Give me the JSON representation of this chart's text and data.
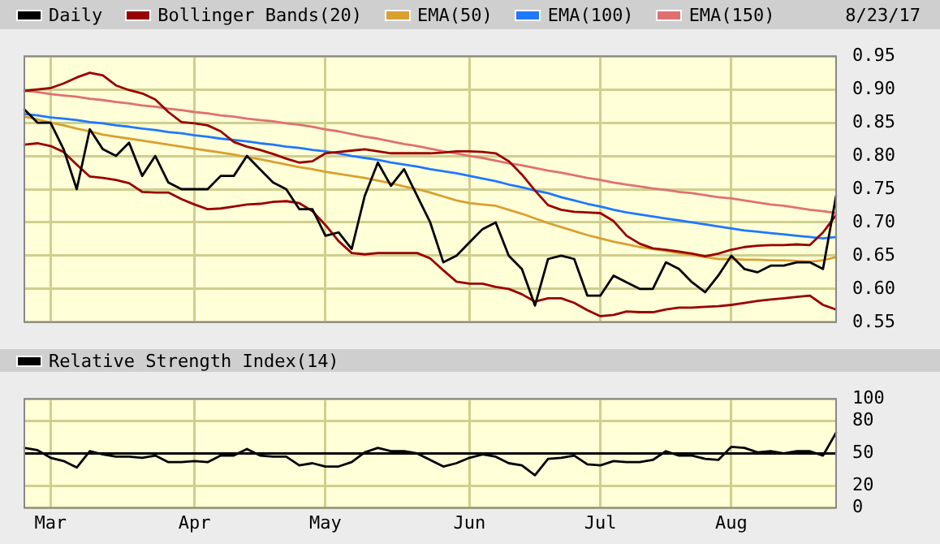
{
  "chart_data": [
    {
      "type": "line",
      "categories": [
        null,
        null,
        null,
        null,
        null,
        null,
        null,
        null,
        null,
        null,
        null,
        null,
        null,
        null,
        null,
        null,
        null,
        null,
        null,
        null,
        null,
        null,
        null,
        null,
        null,
        null,
        null,
        null,
        null,
        null,
        null,
        null,
        null,
        null,
        null,
        null,
        null,
        null,
        null,
        null,
        null,
        null,
        null,
        null,
        null,
        null,
        null,
        null,
        null,
        null,
        null,
        null,
        null,
        null,
        null,
        null,
        null,
        null,
        null,
        null,
        null,
        null,
        null
      ],
      "series": [
        {
          "name": "Daily",
          "color": "#000000",
          "values": [
            0.87,
            0.85,
            0.85,
            0.81,
            0.75,
            0.84,
            0.81,
            0.8,
            0.82,
            0.77,
            0.8,
            0.76,
            0.75,
            0.75,
            0.75,
            0.77,
            0.77,
            0.8,
            0.78,
            0.76,
            0.75,
            0.72,
            0.72,
            0.68,
            0.685,
            0.66,
            0.74,
            0.79,
            0.755,
            0.78,
            0.74,
            0.7,
            0.64,
            0.65,
            0.67,
            0.69,
            0.7,
            0.65,
            0.63,
            0.575,
            0.645,
            0.65,
            0.645,
            0.59,
            0.59,
            0.62,
            0.61,
            0.6,
            0.6,
            0.64,
            0.63,
            0.61,
            0.595,
            0.62,
            0.65,
            0.63,
            0.625,
            0.635,
            0.635,
            0.64,
            0.64,
            0.63,
            0.74
          ]
        },
        {
          "name": "Bollinger Bands(20)",
          "color": "#990000",
          "values": [
            0.898,
            0.9,
            0.902,
            0.909,
            0.918,
            0.925,
            0.921,
            0.906,
            0.899,
            0.894,
            0.885,
            0.866,
            0.851,
            0.849,
            0.846,
            0.837,
            0.821,
            0.814,
            0.809,
            0.803,
            0.796,
            0.79,
            0.792,
            0.804,
            0.806,
            0.808,
            0.81,
            0.807,
            0.804,
            0.804,
            0.804,
            0.804,
            0.805,
            0.807,
            0.807,
            0.806,
            0.804,
            0.792,
            0.772,
            0.748,
            0.726,
            0.719,
            0.716,
            0.715,
            0.714,
            0.702,
            0.68,
            0.668,
            0.661,
            0.659,
            0.656,
            0.653,
            0.649,
            0.653,
            0.659,
            0.663,
            0.665,
            0.666,
            0.666,
            0.667,
            0.666,
            0.685,
            0.711
          ]
        },
        {
          "color": "#990000",
          "values": [
            0.817,
            0.819,
            0.815,
            0.806,
            0.787,
            0.769,
            0.767,
            0.764,
            0.759,
            0.746,
            0.745,
            0.745,
            0.735,
            0.727,
            0.72,
            0.721,
            0.724,
            0.727,
            0.728,
            0.731,
            0.732,
            0.729,
            0.717,
            0.696,
            0.672,
            0.654,
            0.652,
            0.654,
            0.654,
            0.654,
            0.654,
            0.646,
            0.628,
            0.611,
            0.608,
            0.608,
            0.603,
            0.6,
            0.592,
            0.581,
            0.586,
            0.586,
            0.579,
            0.568,
            0.559,
            0.561,
            0.566,
            0.565,
            0.565,
            0.569,
            0.572,
            0.572,
            0.573,
            0.574,
            0.576,
            0.579,
            0.582,
            0.584,
            0.586,
            0.588,
            0.59,
            0.576,
            0.569
          ]
        },
        {
          "name": "EMA(50)",
          "color": "#d9a030",
          "values": [
            0.859,
            0.855,
            0.85,
            0.846,
            0.841,
            0.837,
            0.832,
            0.829,
            0.826,
            0.823,
            0.82,
            0.817,
            0.814,
            0.811,
            0.808,
            0.805,
            0.802,
            0.798,
            0.795,
            0.791,
            0.787,
            0.783,
            0.78,
            0.776,
            0.773,
            0.77,
            0.767,
            0.763,
            0.759,
            0.754,
            0.75,
            0.745,
            0.739,
            0.733,
            0.729,
            0.727,
            0.725,
            0.719,
            0.713,
            0.706,
            0.699,
            0.693,
            0.687,
            0.681,
            0.676,
            0.671,
            0.667,
            0.663,
            0.66,
            0.657,
            0.654,
            0.651,
            0.648,
            0.645,
            0.645,
            0.644,
            0.644,
            0.643,
            0.643,
            0.642,
            0.641,
            0.643,
            0.648
          ]
        },
        {
          "name": "EMA(100)",
          "color": "#1f78ff",
          "values": [
            0.863,
            0.861,
            0.858,
            0.856,
            0.854,
            0.851,
            0.849,
            0.846,
            0.844,
            0.841,
            0.839,
            0.836,
            0.834,
            0.831,
            0.829,
            0.826,
            0.824,
            0.822,
            0.819,
            0.817,
            0.814,
            0.812,
            0.809,
            0.807,
            0.804,
            0.8,
            0.797,
            0.794,
            0.79,
            0.787,
            0.784,
            0.78,
            0.777,
            0.774,
            0.77,
            0.766,
            0.762,
            0.757,
            0.753,
            0.748,
            0.744,
            0.738,
            0.733,
            0.728,
            0.724,
            0.719,
            0.715,
            0.712,
            0.709,
            0.706,
            0.703,
            0.7,
            0.697,
            0.694,
            0.691,
            0.688,
            0.686,
            0.684,
            0.682,
            0.68,
            0.678,
            0.676,
            0.678
          ]
        },
        {
          "name": "EMA(150)",
          "color": "#e07070",
          "values": [
            0.898,
            0.896,
            0.893,
            0.891,
            0.889,
            0.886,
            0.884,
            0.881,
            0.879,
            0.876,
            0.874,
            0.871,
            0.869,
            0.866,
            0.864,
            0.861,
            0.859,
            0.856,
            0.854,
            0.852,
            0.849,
            0.847,
            0.844,
            0.84,
            0.837,
            0.833,
            0.829,
            0.826,
            0.822,
            0.818,
            0.815,
            0.811,
            0.807,
            0.804,
            0.8,
            0.797,
            0.793,
            0.789,
            0.786,
            0.782,
            0.778,
            0.775,
            0.771,
            0.767,
            0.764,
            0.76,
            0.757,
            0.754,
            0.751,
            0.749,
            0.746,
            0.744,
            0.741,
            0.738,
            0.736,
            0.733,
            0.73,
            0.727,
            0.725,
            0.722,
            0.719,
            0.717,
            0.714
          ]
        }
      ],
      "ylim": [
        0.55,
        0.95
      ],
      "yticks": [
        0.55,
        {
          "value": 0.6,
          "label": "0.60"
        },
        0.65,
        {
          "value": 0.7,
          "label": "0.70"
        },
        0.75,
        {
          "value": 0.8,
          "label": "0.80"
        },
        0.85,
        {
          "value": 0.9,
          "label": "0.90"
        },
        0.95
      ],
      "grid": true,
      "legend": "top",
      "marker": "none",
      "tick_labels": "y",
      "annotations": [
        "8/23/17"
      ]
    },
    {
      "type": "line",
      "categories": [
        null,
        null,
        "Mar",
        null,
        null,
        null,
        null,
        null,
        null,
        null,
        null,
        null,
        null,
        "Apr",
        null,
        null,
        null,
        null,
        null,
        null,
        null,
        null,
        null,
        "May",
        null,
        null,
        null,
        null,
        null,
        null,
        null,
        null,
        null,
        null,
        "Jun",
        null,
        null,
        null,
        null,
        null,
        null,
        null,
        null,
        null,
        "Jul",
        null,
        null,
        null,
        null,
        null,
        null,
        null,
        null,
        null,
        "Aug",
        null,
        null,
        null,
        null,
        null,
        null,
        null,
        null
      ],
      "series": [
        {
          "name": "Relative Strength Index(14)",
          "color": "#000000",
          "values": [
            55,
            53,
            46,
            43,
            37,
            52,
            49,
            47,
            47,
            46,
            48,
            42,
            42,
            43,
            42,
            48,
            48,
            54,
            48,
            47,
            47,
            39,
            41,
            38,
            38,
            42,
            51,
            55,
            52,
            52,
            50,
            44,
            38,
            41,
            46,
            49,
            47,
            41,
            39,
            30,
            45,
            46,
            48,
            40,
            39,
            43,
            42,
            42,
            44,
            52,
            48,
            48,
            45,
            44,
            56,
            55,
            51,
            52,
            50,
            52,
            52,
            48,
            69
          ]
        }
      ],
      "ylim": [
        0,
        100
      ],
      "yticks": [
        0,
        20,
        50,
        80,
        100
      ],
      "ref_lines": [
        {
          "axis": "y",
          "value": 50,
          "color": "#000000"
        }
      ],
      "grid": true,
      "legend": "top",
      "marker": "none"
    }
  ]
}
